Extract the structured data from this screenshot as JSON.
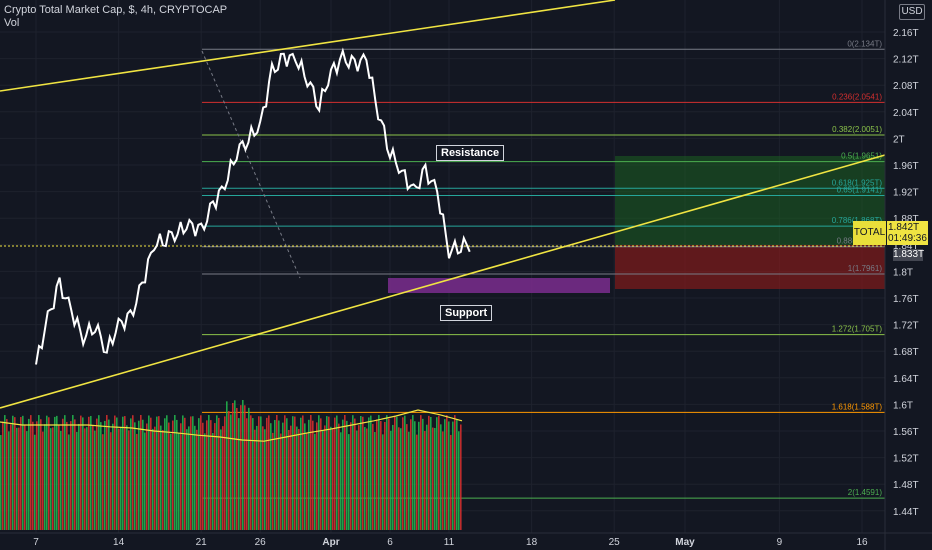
{
  "header": {
    "title": "Crypto Total Market Cap, $, 4h, CRYPTOCAP",
    "subtitle": "Vol"
  },
  "currency_button": "USD",
  "annotations": {
    "resistance": "Resistance",
    "support": "Support"
  },
  "price_tag": {
    "symbol": "TOTAL",
    "price": "1.842T",
    "countdown": "01:49:36",
    "last": "1.833T"
  },
  "colors": {
    "background": "#131722",
    "price_line": "#ffffff",
    "trendline": "#f0e442",
    "vol_up": "#22b14c",
    "vol_down": "#d32f2f",
    "zone_support": "#7b2d8e",
    "tp_zone": "#1b5e20",
    "sl_zone": "#8b1a1a"
  },
  "chart_data": {
    "type": "line",
    "title": "Crypto Total Market Cap, $, 4h, CRYPTOCAP",
    "y_axis": {
      "ticks": [
        "2.16T",
        "2.12T",
        "2.08T",
        "2.04T",
        "2T",
        "1.96T",
        "1.92T",
        "1.88T",
        "1.84T",
        "1.8T",
        "1.76T",
        "1.72T",
        "1.68T",
        "1.64T",
        "1.6T",
        "1.56T",
        "1.52T",
        "1.48T",
        "1.44T"
      ],
      "values": [
        2.16,
        2.12,
        2.08,
        2.04,
        2.0,
        1.96,
        1.92,
        1.88,
        1.84,
        1.8,
        1.76,
        1.72,
        1.68,
        1.64,
        1.6,
        1.56,
        1.52,
        1.48,
        1.44
      ],
      "range": [
        1.43,
        2.175
      ],
      "unit": "T"
    },
    "x_axis": {
      "ticks": [
        "7",
        "14",
        "21",
        "26",
        "Apr",
        "6",
        "11",
        "18",
        "25",
        "May",
        "9",
        "16"
      ],
      "dates": [
        "2022-03-07",
        "2022-03-14",
        "2022-03-21",
        "2022-03-26",
        "2022-04-01",
        "2022-04-06",
        "2022-04-11",
        "2022-04-18",
        "2022-04-25",
        "2022-05-01",
        "2022-05-09",
        "2022-05-16"
      ]
    },
    "series": [
      {
        "x": [
          "2022-03-07",
          "2022-03-08",
          "2022-03-09",
          "2022-03-10",
          "2022-03-11",
          "2022-03-12",
          "2022-03-13",
          "2022-03-14",
          "2022-03-15",
          "2022-03-16",
          "2022-03-17",
          "2022-03-18",
          "2022-03-19",
          "2022-03-20",
          "2022-03-21",
          "2022-03-22",
          "2022-03-23",
          "2022-03-24",
          "2022-03-25",
          "2022-03-26",
          "2022-03-27",
          "2022-03-28",
          "2022-03-29",
          "2022-03-30",
          "2022-03-31",
          "2022-04-01",
          "2022-04-02",
          "2022-04-03",
          "2022-04-04",
          "2022-04-05",
          "2022-04-06",
          "2022-04-07",
          "2022-04-08",
          "2022-04-09",
          "2022-04-10",
          "2022-04-11",
          "2022-04-12"
        ],
        "values": [
          1.66,
          1.73,
          1.78,
          1.74,
          1.7,
          1.72,
          1.68,
          1.72,
          1.73,
          1.78,
          1.84,
          1.85,
          1.86,
          1.87,
          1.86,
          1.9,
          1.93,
          1.98,
          2.0,
          2.02,
          2.1,
          2.12,
          2.12,
          2.09,
          2.05,
          2.1,
          2.12,
          2.11,
          2.12,
          2.04,
          1.98,
          1.95,
          1.92,
          1.95,
          1.92,
          1.83,
          1.84
        ]
      }
    ],
    "fibonacci": [
      {
        "label": "0(2.134T)",
        "value": 2.134,
        "color": "#787b86"
      },
      {
        "label": "0.236(2.0541)",
        "value": 2.0541,
        "color": "#d32f2f"
      },
      {
        "label": "0.382(2.0051)",
        "value": 2.0051,
        "color": "#8bc34a"
      },
      {
        "label": "0.5(1.9651)",
        "value": 1.9651,
        "color": "#4caf50"
      },
      {
        "label": "0.618(1.925T)",
        "value": 1.925,
        "color": "#26a69a"
      },
      {
        "label": "0.65(1.9141)",
        "value": 1.9141,
        "color": "#26a69a"
      },
      {
        "label": "0.786(1.868T)",
        "value": 1.868,
        "color": "#26a69a"
      },
      {
        "label": "0.88(1.8371)",
        "value": 1.8371,
        "color": "#787b86"
      },
      {
        "label": "1(1.7961)",
        "value": 1.7961,
        "color": "#787b86"
      },
      {
        "label": "1.272(1.705T)",
        "value": 1.705,
        "color": "#8bc34a"
      },
      {
        "label": "1.618(1.588T)",
        "value": 1.588,
        "color": "#ff9800"
      },
      {
        "label": "2(1.4591)",
        "value": 1.4591,
        "color": "#4caf50"
      }
    ],
    "trendlines": [
      {
        "name": "upper",
        "from": [
          "2022-03-03",
          2.1
        ],
        "to": [
          "2022-04-25",
          2.25
        ]
      },
      {
        "name": "lower",
        "from": [
          "2022-03-03",
          1.6
        ],
        "to": [
          "2022-05-19",
          1.96
        ]
      }
    ],
    "volume": {
      "bars_up_fraction": 0.5,
      "ma_values": [
        0.6,
        0.55,
        0.55,
        0.55,
        0.55,
        0.52,
        0.5,
        0.45,
        0.42,
        0.38,
        0.35,
        0.3,
        0.28,
        0.35,
        0.42,
        0.48,
        0.55,
        0.62,
        0.7,
        0.8,
        0.72,
        0.62
      ]
    }
  }
}
